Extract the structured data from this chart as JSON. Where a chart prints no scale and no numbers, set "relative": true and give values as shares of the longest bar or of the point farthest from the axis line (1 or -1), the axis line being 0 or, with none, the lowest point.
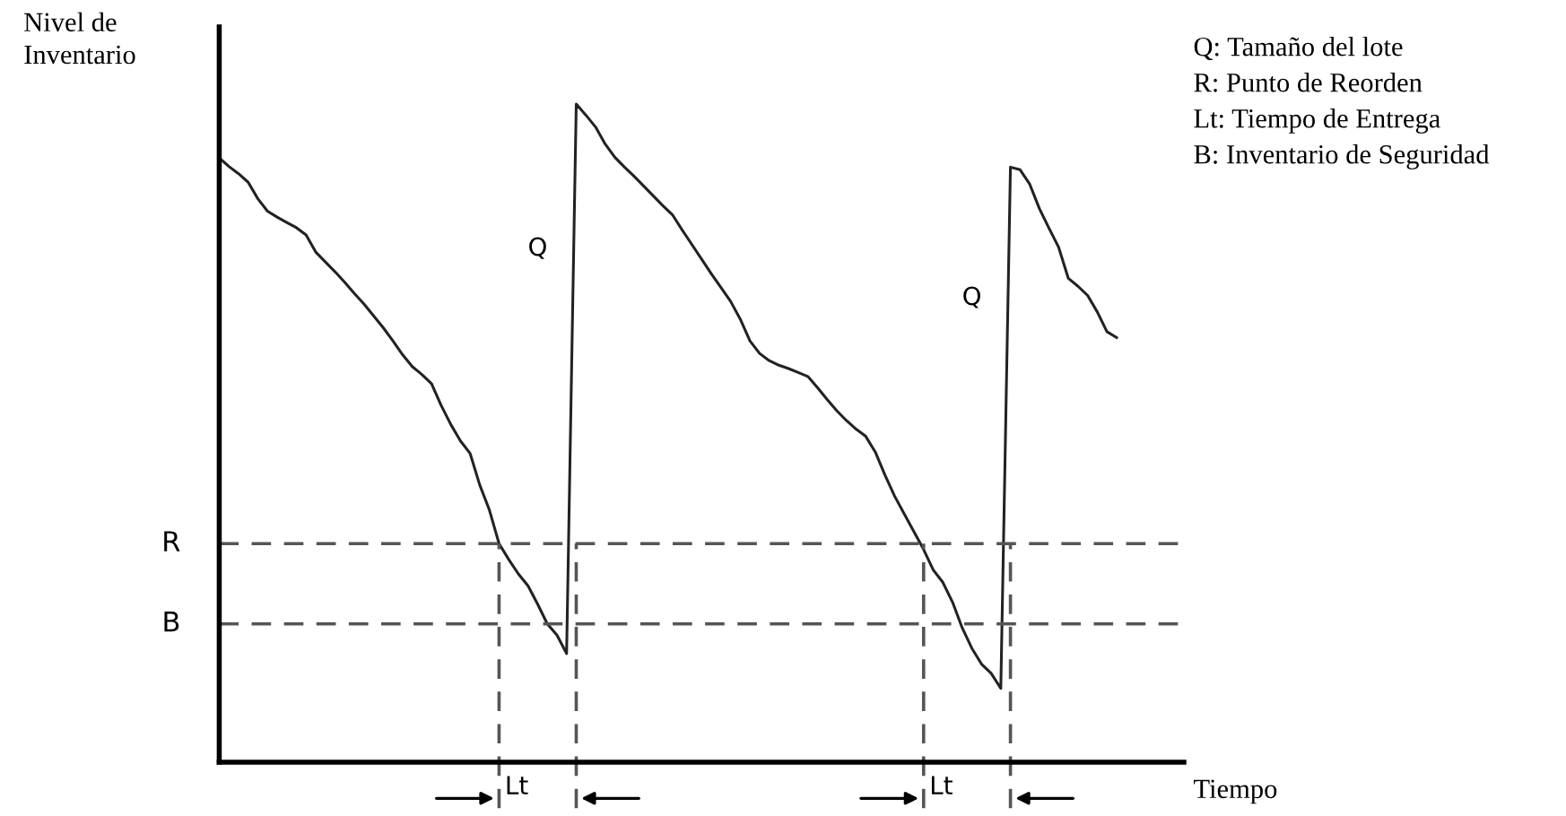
{
  "chart_data": {
    "type": "line",
    "relative": true,
    "xlabel": "Tiempo",
    "ylabel": "Nivel de\nInventario",
    "line_style": "solid",
    "categories": [
      null,
      null,
      null,
      null,
      null,
      null,
      null,
      null,
      null,
      null,
      null,
      null,
      null,
      null,
      null,
      null,
      null,
      null,
      null,
      null,
      null,
      null,
      null,
      null,
      null,
      null,
      null,
      null,
      null,
      null,
      null,
      null,
      null,
      null,
      null,
      null,
      null,
      null,
      null,
      null,
      null,
      null,
      null,
      null,
      null,
      null,
      null,
      null,
      null,
      null,
      null,
      null,
      null,
      null,
      null,
      null,
      null,
      null,
      null,
      null,
      null,
      null,
      null,
      null,
      null,
      null,
      null,
      null,
      null,
      null,
      null,
      null,
      null,
      null,
      null,
      null,
      null,
      null,
      null,
      null,
      null,
      null,
      null,
      null,
      null,
      null,
      null,
      null,
      null,
      null,
      null,
      null,
      null,
      null
    ],
    "series": [
      {
        "color": "#222222",
        "values": [
          0.918,
          0.905,
          0.894,
          0.881,
          0.856,
          0.837,
          0.828,
          0.82,
          0.812,
          0.801,
          0.775,
          0.76,
          0.745,
          0.729,
          0.712,
          0.696,
          0.678,
          0.66,
          0.64,
          0.619,
          0.601,
          0.589,
          0.575,
          0.542,
          0.513,
          0.488,
          0.469,
          0.421,
          0.383,
          0.332,
          0.308,
          0.286,
          0.268,
          0.24,
          0.21,
          0.193,
          0.165,
          1.0,
          0.983,
          0.965,
          0.939,
          0.919,
          0.904,
          0.89,
          0.875,
          0.86,
          0.845,
          0.831,
          0.808,
          0.786,
          0.764,
          0.742,
          0.721,
          0.7,
          0.673,
          0.64,
          0.621,
          0.61,
          0.603,
          0.598,
          0.592,
          0.586,
          0.569,
          0.551,
          0.534,
          0.519,
          0.506,
          0.495,
          0.471,
          0.436,
          0.404,
          0.377,
          0.35,
          0.323,
          0.292,
          0.273,
          0.243,
          0.204,
          0.173,
          0.149,
          0.135,
          0.112,
          0.904,
          0.9,
          0.878,
          0.841,
          0.811,
          0.782,
          0.735,
          0.723,
          0.709,
          0.684,
          0.654,
          0.645
        ]
      }
    ],
    "ref_lines": [
      {
        "axis": "y",
        "value": 0.332,
        "label": "R",
        "color": "#555555",
        "line_style": "dashed"
      },
      {
        "axis": "y",
        "value": 0.21,
        "label": "B",
        "color": "#555555",
        "line_style": "dashed"
      }
    ],
    "annotations": [
      "Q",
      "Q",
      "Lt",
      "Lt",
      "Q: Tamaño del lote",
      "R: Punto de Reorden",
      "Lt: Tiempo de Entrega",
      "B: Inventario de Seguridad"
    ]
  }
}
